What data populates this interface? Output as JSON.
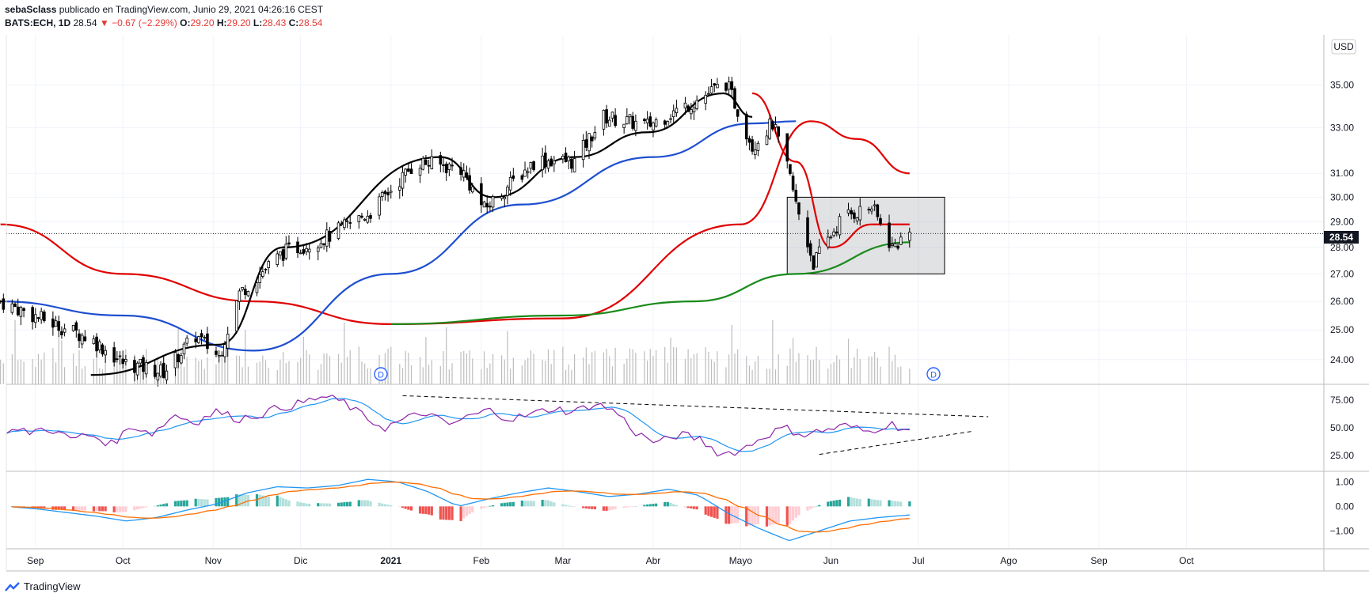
{
  "header": {
    "author": "sebaSclass",
    "published": "publicado en TradingView.com, Junio 29, 2021 04:26:16 CEST",
    "symbol": "BATS:ECH, 1D",
    "last": "28.54",
    "change": "−0.67 (−2.29%)",
    "o_label": "O:",
    "o_val": "29.20",
    "h_label": "H:",
    "h_val": "29.20",
    "l_label": "L:",
    "l_val": "28.43",
    "c_label": "C:",
    "c_val": "28.54"
  },
  "currency_button": "USD",
  "price_badge": "28.54",
  "dividend_marker": "D",
  "brand": "TradingView",
  "colors": {
    "up": "#26a69a",
    "down": "#ef5350",
    "ma_red": "#e00000",
    "ma_blue": "#1e4fd0",
    "ma_green": "#1a8a1a",
    "ma_black": "#000000",
    "rsi": "#8e24aa",
    "rsi_ma": "#2196f3",
    "macd": "#2196f3",
    "signal": "#ff6d00"
  },
  "chart_data": [
    {
      "type": "candlestick",
      "title": "",
      "symbol": "BATS:ECH",
      "interval": "1D",
      "currency": "USD",
      "price_scale": "log",
      "ylim": [
        23.2,
        37.5
      ],
      "y_ticks": [
        "35.00",
        "33.00",
        "31.00",
        "30.00",
        "29.00",
        "28.00",
        "27.00",
        "26.00",
        "25.00",
        "24.00"
      ],
      "x_ticks": [
        "Sep",
        "Oct",
        "Nov",
        "Dic",
        "2021",
        "Feb",
        "Mar",
        "Abr",
        "Mayo",
        "Jun",
        "Jul",
        "Ago",
        "Sep",
        "Oct"
      ],
      "last_price": 28.54,
      "close_path": [
        [
          "2020-08-20",
          26.0
        ],
        [
          "2020-09-05",
          25.3
        ],
        [
          "2020-09-20",
          24.7
        ],
        [
          "2020-10-01",
          23.9
        ],
        [
          "2020-10-15",
          23.6
        ],
        [
          "2020-10-26",
          24.8
        ],
        [
          "2020-11-03",
          24.1
        ],
        [
          "2020-11-10",
          26.3
        ],
        [
          "2020-11-25",
          27.8
        ],
        [
          "2020-12-10",
          28.4
        ],
        [
          "2020-12-25",
          29.4
        ],
        [
          "2021-01-10",
          31.5
        ],
        [
          "2021-01-25",
          31.2
        ],
        [
          "2021-02-02",
          29.5
        ],
        [
          "2021-02-20",
          31.6
        ],
        [
          "2021-03-05",
          31.5
        ],
        [
          "2021-03-15",
          33.5
        ],
        [
          "2021-03-30",
          33.1
        ],
        [
          "2021-04-15",
          34.2
        ],
        [
          "2021-04-26",
          35.1
        ],
        [
          "2021-05-05",
          32.2
        ],
        [
          "2021-05-12",
          33.2
        ],
        [
          "2021-05-18",
          30.8
        ],
        [
          "2021-05-20",
          29.7
        ],
        [
          "2021-05-26",
          27.4
        ],
        [
          "2021-06-05",
          29.2
        ],
        [
          "2021-06-15",
          29.6
        ],
        [
          "2021-06-22",
          28.0
        ],
        [
          "2021-06-28",
          28.54
        ]
      ],
      "moving_averages": [
        {
          "color": "red",
          "points": [
            [
              "2020-08-20",
              28.9
            ],
            [
              "2020-10-01",
              27.0
            ],
            [
              "2020-11-15",
              26.0
            ],
            [
              "2021-01-01",
              25.2
            ],
            [
              "2021-03-01",
              25.4
            ],
            [
              "2021-05-01",
              28.9
            ],
            [
              "2021-05-25",
              33.3
            ],
            [
              "2021-06-10",
              32.5
            ],
            [
              "2021-06-28",
              31.0
            ]
          ]
        },
        {
          "color": "blue",
          "points": [
            [
              "2020-08-20",
              26.0
            ],
            [
              "2020-10-01",
              25.5
            ],
            [
              "2020-11-15",
              24.3
            ],
            [
              "2021-01-01",
              27.0
            ],
            [
              "2021-02-15",
              29.7
            ],
            [
              "2021-04-01",
              31.7
            ],
            [
              "2021-05-05",
              33.2
            ],
            [
              "2021-05-20",
              33.3
            ]
          ]
        },
        {
          "color": "green",
          "points": [
            [
              "2021-01-01",
              25.2
            ],
            [
              "2021-03-01",
              25.5
            ],
            [
              "2021-04-15",
              26.0
            ],
            [
              "2021-05-20",
              27.0
            ],
            [
              "2021-06-28",
              28.2
            ]
          ]
        },
        {
          "color": "black",
          "points": [
            [
              "2020-09-20",
              23.5
            ],
            [
              "2020-11-03",
              24.5
            ],
            [
              "2020-11-25",
              28.0
            ],
            [
              "2021-01-18",
              31.7
            ],
            [
              "2021-02-05",
              30.0
            ],
            [
              "2021-03-05",
              31.7
            ],
            [
              "2021-03-30",
              32.8
            ],
            [
              "2021-04-25",
              34.6
            ],
            [
              "2021-05-05",
              33.5
            ]
          ]
        },
        {
          "color": "red",
          "points": [
            [
              "2021-05-05",
              34.6
            ],
            [
              "2021-05-20",
              31.5
            ],
            [
              "2021-06-01",
              28.0
            ],
            [
              "2021-06-15",
              28.9
            ],
            [
              "2021-06-28",
              28.9
            ]
          ]
        }
      ],
      "rectangle": {
        "price_top": 30.0,
        "price_bottom": 27.0,
        "from": "2021-05-17",
        "to": "2021-07-10"
      }
    },
    {
      "type": "line",
      "title": "",
      "indicator": "RSI",
      "ylim": [
        15,
        85
      ],
      "y_ticks": [
        "75.00",
        "50.00",
        "25.00"
      ],
      "series": [
        {
          "values": [
            48,
            46,
            50,
            40,
            44,
            35,
            52,
            45,
            62,
            55,
            65,
            58,
            62,
            68,
            72,
            78,
            74,
            60,
            50,
            58,
            64,
            52,
            60,
            66,
            58,
            62,
            68,
            64,
            72,
            65,
            45,
            36,
            44,
            40,
            26,
            30,
            42,
            50,
            44,
            48,
            52,
            46,
            54,
            48
          ]
        }
      ],
      "trendlines": [
        {
          "style": "dashed",
          "from": [
            "2021-01-05",
            79
          ],
          "to": [
            "2021-07-25",
            60
          ]
        },
        {
          "style": "dashed",
          "from": [
            "2021-05-28",
            26
          ],
          "to": [
            "2021-07-20",
            47
          ]
        }
      ]
    },
    {
      "type": "bar",
      "title": "",
      "indicator": "MACD",
      "ylim": [
        -1.6,
        1.3
      ],
      "y_ticks": [
        "1.00",
        "0.00",
        "−1.00"
      ],
      "series": [
        {
          "values": [
            0.0,
            -0.1,
            -0.25,
            -0.4,
            -0.6,
            -0.45,
            -0.15,
            0.1,
            0.55,
            0.8,
            0.75,
            0.85,
            1.1,
            1.0,
            0.6,
            0.0,
            0.3,
            0.55,
            0.75,
            0.6,
            0.4,
            0.5,
            0.7,
            0.45,
            -0.3,
            -0.9,
            -1.4,
            -1.0,
            -0.6,
            -0.45,
            -0.35
          ]
        }
      ]
    }
  ]
}
